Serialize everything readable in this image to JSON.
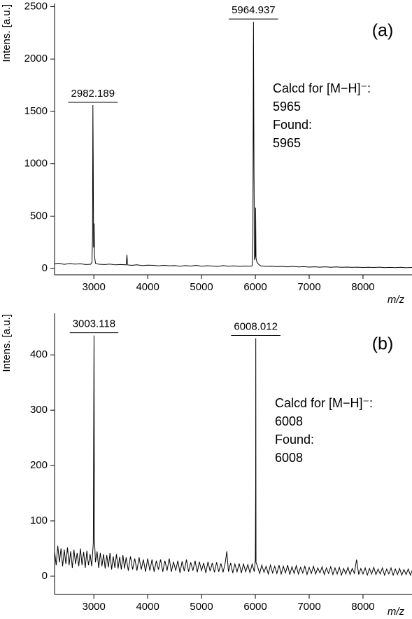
{
  "chart_data": [
    {
      "type": "line",
      "color": "#000000",
      "ylabel": "Intens. [a.u.]",
      "xlabel": "m/z",
      "panel_label": "(a)",
      "annotation": [
        "Calcd for [M−H]⁻:",
        "5965",
        "Found:",
        "5965"
      ],
      "peak_labels": [
        {
          "value": 2982.189,
          "label": "2982.189"
        },
        {
          "value": 5964.937,
          "label": "5964.937"
        }
      ],
      "xlim": [
        2270,
        8910
      ],
      "xticks": [
        3000,
        4000,
        5000,
        6000,
        7000,
        8000
      ],
      "ylim": [
        -60,
        2530
      ],
      "yticks": [
        0,
        500,
        1000,
        1500,
        2000,
        2500
      ],
      "x": [
        2270,
        2350,
        2450,
        2550,
        2650,
        2750,
        2850,
        2940,
        2965,
        2975,
        2982,
        2988,
        2995,
        3005,
        3012,
        3030,
        3100,
        3200,
        3300,
        3400,
        3500,
        3600,
        3615,
        3625,
        3700,
        3800,
        3900,
        4000,
        4100,
        4200,
        4300,
        4400,
        4500,
        4600,
        4700,
        4800,
        4900,
        5000,
        5100,
        5200,
        5300,
        5400,
        5500,
        5600,
        5700,
        5800,
        5900,
        5940,
        5955,
        5965,
        5975,
        5985,
        5998,
        6005,
        6012,
        6030,
        6060,
        6100,
        6200,
        6300,
        6400,
        6500,
        6600,
        6700,
        6800,
        6900,
        7000,
        7100,
        7200,
        7300,
        7400,
        7500,
        7600,
        7700,
        7800,
        7900,
        8000,
        8100,
        8200,
        8300,
        8400,
        8500,
        8600,
        8700,
        8800,
        8910
      ],
      "values": [
        45,
        50,
        40,
        48,
        42,
        45,
        38,
        40,
        60,
        300,
        1560,
        1050,
        200,
        430,
        120,
        50,
        40,
        38,
        42,
        35,
        38,
        35,
        130,
        35,
        30,
        35,
        28,
        32,
        30,
        25,
        30,
        26,
        28,
        22,
        28,
        24,
        30,
        22,
        26,
        24,
        20,
        28,
        22,
        25,
        20,
        24,
        22,
        25,
        300,
        2355,
        900,
        80,
        120,
        580,
        100,
        60,
        40,
        25,
        20,
        22,
        18,
        20,
        16,
        20,
        15,
        18,
        14,
        16,
        13,
        16,
        12,
        15,
        12,
        14,
        11,
        13,
        10,
        12,
        10,
        13,
        9,
        11,
        9,
        12,
        8,
        10
      ]
    },
    {
      "type": "line",
      "color": "#000000",
      "ylabel": "Intens. [a.u.]",
      "xlabel": "m/z",
      "panel_label": "(b)",
      "annotation": [
        "Calcd for [M−H]⁻:",
        "6008",
        "Found:",
        "6008"
      ],
      "peak_labels": [
        {
          "value": 3003.118,
          "label": "3003.118"
        },
        {
          "value": 6008.012,
          "label": "6008.012"
        }
      ],
      "xlim": [
        2270,
        8910
      ],
      "xticks": [
        3000,
        4000,
        5000,
        6000,
        7000,
        8000
      ],
      "ylim": [
        -33,
        475
      ],
      "yticks": [
        0,
        100,
        200,
        300,
        400
      ],
      "x": [
        2270,
        2300,
        2330,
        2360,
        2390,
        2420,
        2450,
        2480,
        2510,
        2540,
        2570,
        2600,
        2630,
        2660,
        2690,
        2720,
        2750,
        2780,
        2810,
        2840,
        2870,
        2900,
        2930,
        2960,
        2990,
        3003,
        3010,
        3030,
        3060,
        3090,
        3120,
        3150,
        3180,
        3210,
        3240,
        3270,
        3300,
        3330,
        3360,
        3390,
        3420,
        3450,
        3480,
        3510,
        3540,
        3570,
        3600,
        3640,
        3680,
        3720,
        3760,
        3800,
        3840,
        3880,
        3920,
        3960,
        4000,
        4040,
        4080,
        4120,
        4160,
        4200,
        4240,
        4280,
        4320,
        4360,
        4400,
        4440,
        4480,
        4520,
        4560,
        4600,
        4640,
        4680,
        4720,
        4760,
        4800,
        4840,
        4880,
        4920,
        4960,
        5000,
        5040,
        5080,
        5120,
        5160,
        5200,
        5240,
        5280,
        5320,
        5360,
        5400,
        5440,
        5470,
        5500,
        5540,
        5580,
        5620,
        5660,
        5700,
        5740,
        5780,
        5820,
        5860,
        5900,
        5940,
        5980,
        6000,
        6006,
        6008,
        6012,
        6040,
        6080,
        6120,
        6160,
        6200,
        6240,
        6280,
        6320,
        6360,
        6400,
        6440,
        6480,
        6520,
        6560,
        6600,
        6640,
        6680,
        6720,
        6760,
        6800,
        6840,
        6880,
        6920,
        6960,
        7000,
        7040,
        7080,
        7120,
        7160,
        7200,
        7240,
        7280,
        7320,
        7360,
        7400,
        7440,
        7480,
        7520,
        7560,
        7600,
        7640,
        7680,
        7720,
        7760,
        7800,
        7840,
        7880,
        7920,
        7960,
        8000,
        8040,
        8080,
        8120,
        8160,
        8200,
        8240,
        8280,
        8320,
        8360,
        8400,
        8440,
        8480,
        8520,
        8560,
        8600,
        8640,
        8680,
        8720,
        8760,
        8800,
        8840,
        8880,
        8910
      ],
      "values": [
        45,
        20,
        55,
        25,
        50,
        18,
        48,
        22,
        52,
        20,
        45,
        15,
        48,
        22,
        42,
        18,
        50,
        20,
        44,
        15,
        46,
        20,
        40,
        18,
        60,
        435,
        70,
        25,
        45,
        15,
        42,
        18,
        40,
        14,
        38,
        16,
        42,
        12,
        36,
        15,
        40,
        14,
        35,
        12,
        38,
        14,
        34,
        10,
        36,
        12,
        32,
        10,
        34,
        12,
        30,
        8,
        32,
        10,
        30,
        8,
        28,
        12,
        30,
        8,
        28,
        10,
        32,
        8,
        26,
        10,
        28,
        6,
        27,
        9,
        30,
        8,
        25,
        10,
        28,
        7,
        26,
        10,
        24,
        6,
        26,
        9,
        24,
        7,
        25,
        8,
        23,
        7,
        24,
        45,
        8,
        24,
        6,
        22,
        8,
        23,
        6,
        22,
        8,
        21,
        6,
        22,
        8,
        30,
        170,
        430,
        25,
        18,
        5,
        20,
        7,
        18,
        4,
        20,
        6,
        18,
        5,
        20,
        4,
        18,
        6,
        20,
        3,
        17,
        5,
        19,
        4,
        16,
        6,
        18,
        3,
        16,
        5,
        18,
        4,
        15,
        6,
        17,
        3,
        15,
        5,
        17,
        3,
        15,
        4,
        16,
        2,
        14,
        4,
        16,
        3,
        14,
        5,
        30,
        3,
        14,
        4,
        15,
        2,
        14,
        4,
        16,
        3,
        13,
        4,
        15,
        2,
        13,
        4,
        15,
        2,
        13,
        3,
        14,
        2,
        12,
        3,
        13,
        2,
        10
      ]
    }
  ]
}
